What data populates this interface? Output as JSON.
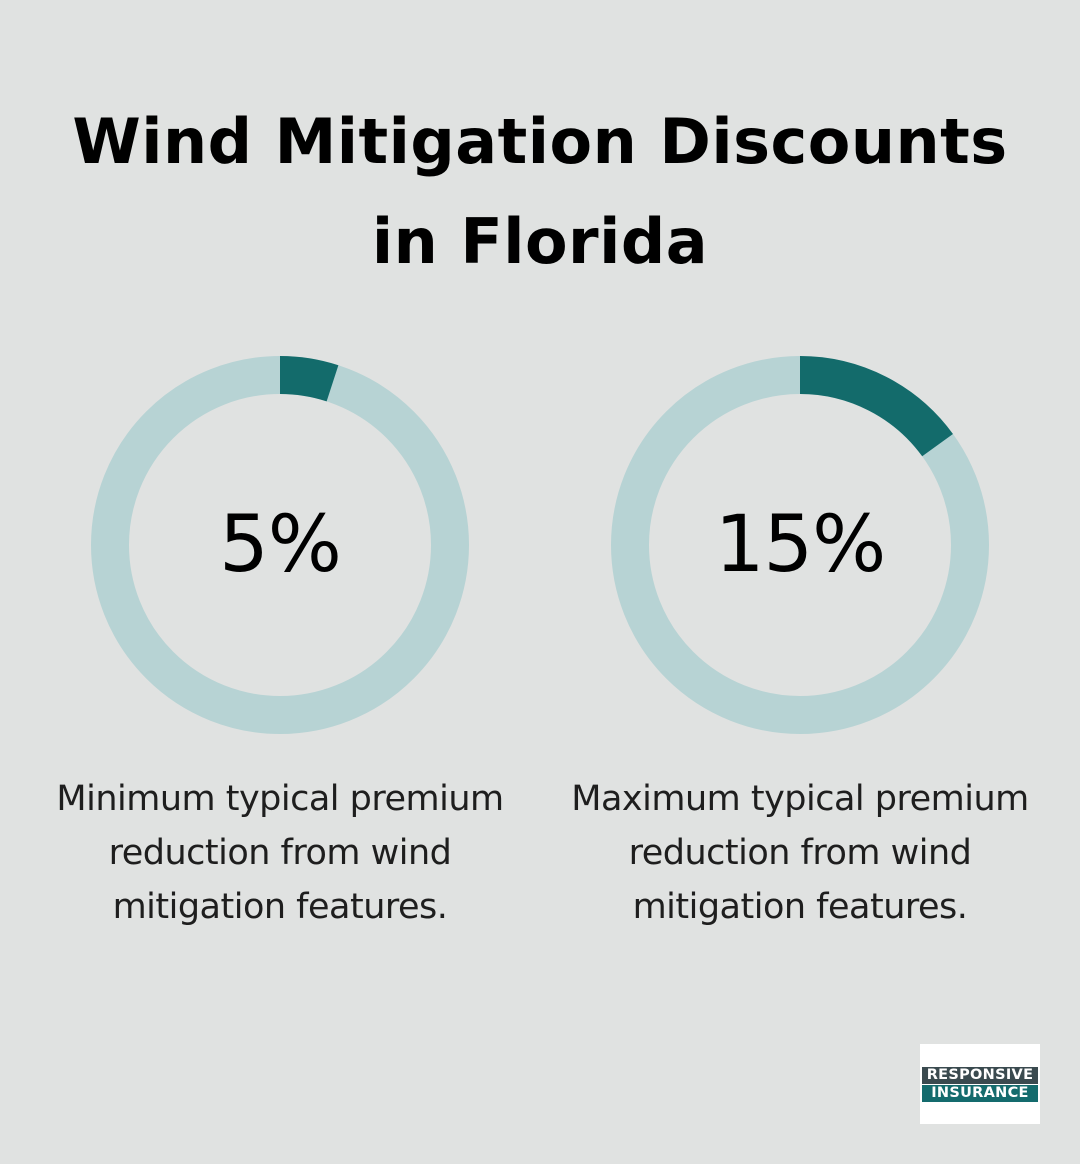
{
  "title": {
    "line1": "Wind Mitigation Discounts",
    "line2": "in Florida"
  },
  "stats": [
    {
      "value_label": "5%",
      "fraction": 0.05,
      "description": "Minimum typical premium reduction from wind mitigation features."
    },
    {
      "value_label": "15%",
      "fraction": 0.15,
      "description": "Maximum typical premium reduction from wind mitigation features."
    }
  ],
  "colors": {
    "background": "#e0e2e1",
    "ring_track": "#b7d3d4",
    "ring_fill": "#136b6b",
    "logo_dark": "#3a4a4f",
    "logo_teal": "#146b6d"
  },
  "logo": {
    "line1": "RESPONSIVE",
    "line2": "INSURANCE"
  }
}
